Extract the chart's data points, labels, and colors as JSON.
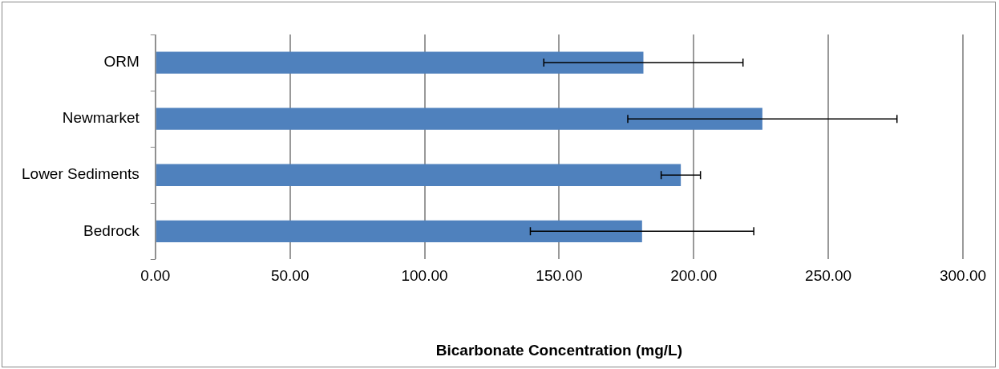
{
  "chart_data": {
    "type": "bar",
    "orientation": "horizontal",
    "xlabel": "Bicarbonate Concentration (mg/L)",
    "categories": [
      "ORM",
      "Newmarket",
      "Lower Sediments",
      "Bedrock"
    ],
    "values": [
      181.3,
      225.5,
      195.2,
      180.8
    ],
    "errors": [
      37,
      50,
      7.3,
      41.5
    ],
    "color": "#4f81bd",
    "xlim": [
      0,
      300
    ],
    "xticks": [
      {
        "value": 0,
        "label": "0.00"
      },
      {
        "value": 50,
        "label": "50.00"
      },
      {
        "value": 100,
        "label": "100.00"
      },
      {
        "value": 150,
        "label": "150.00"
      },
      {
        "value": 200,
        "label": "200.00"
      },
      {
        "value": 250,
        "label": "250.00"
      },
      {
        "value": 300,
        "label": "300.00"
      }
    ],
    "grid": "x",
    "legend": false
  }
}
